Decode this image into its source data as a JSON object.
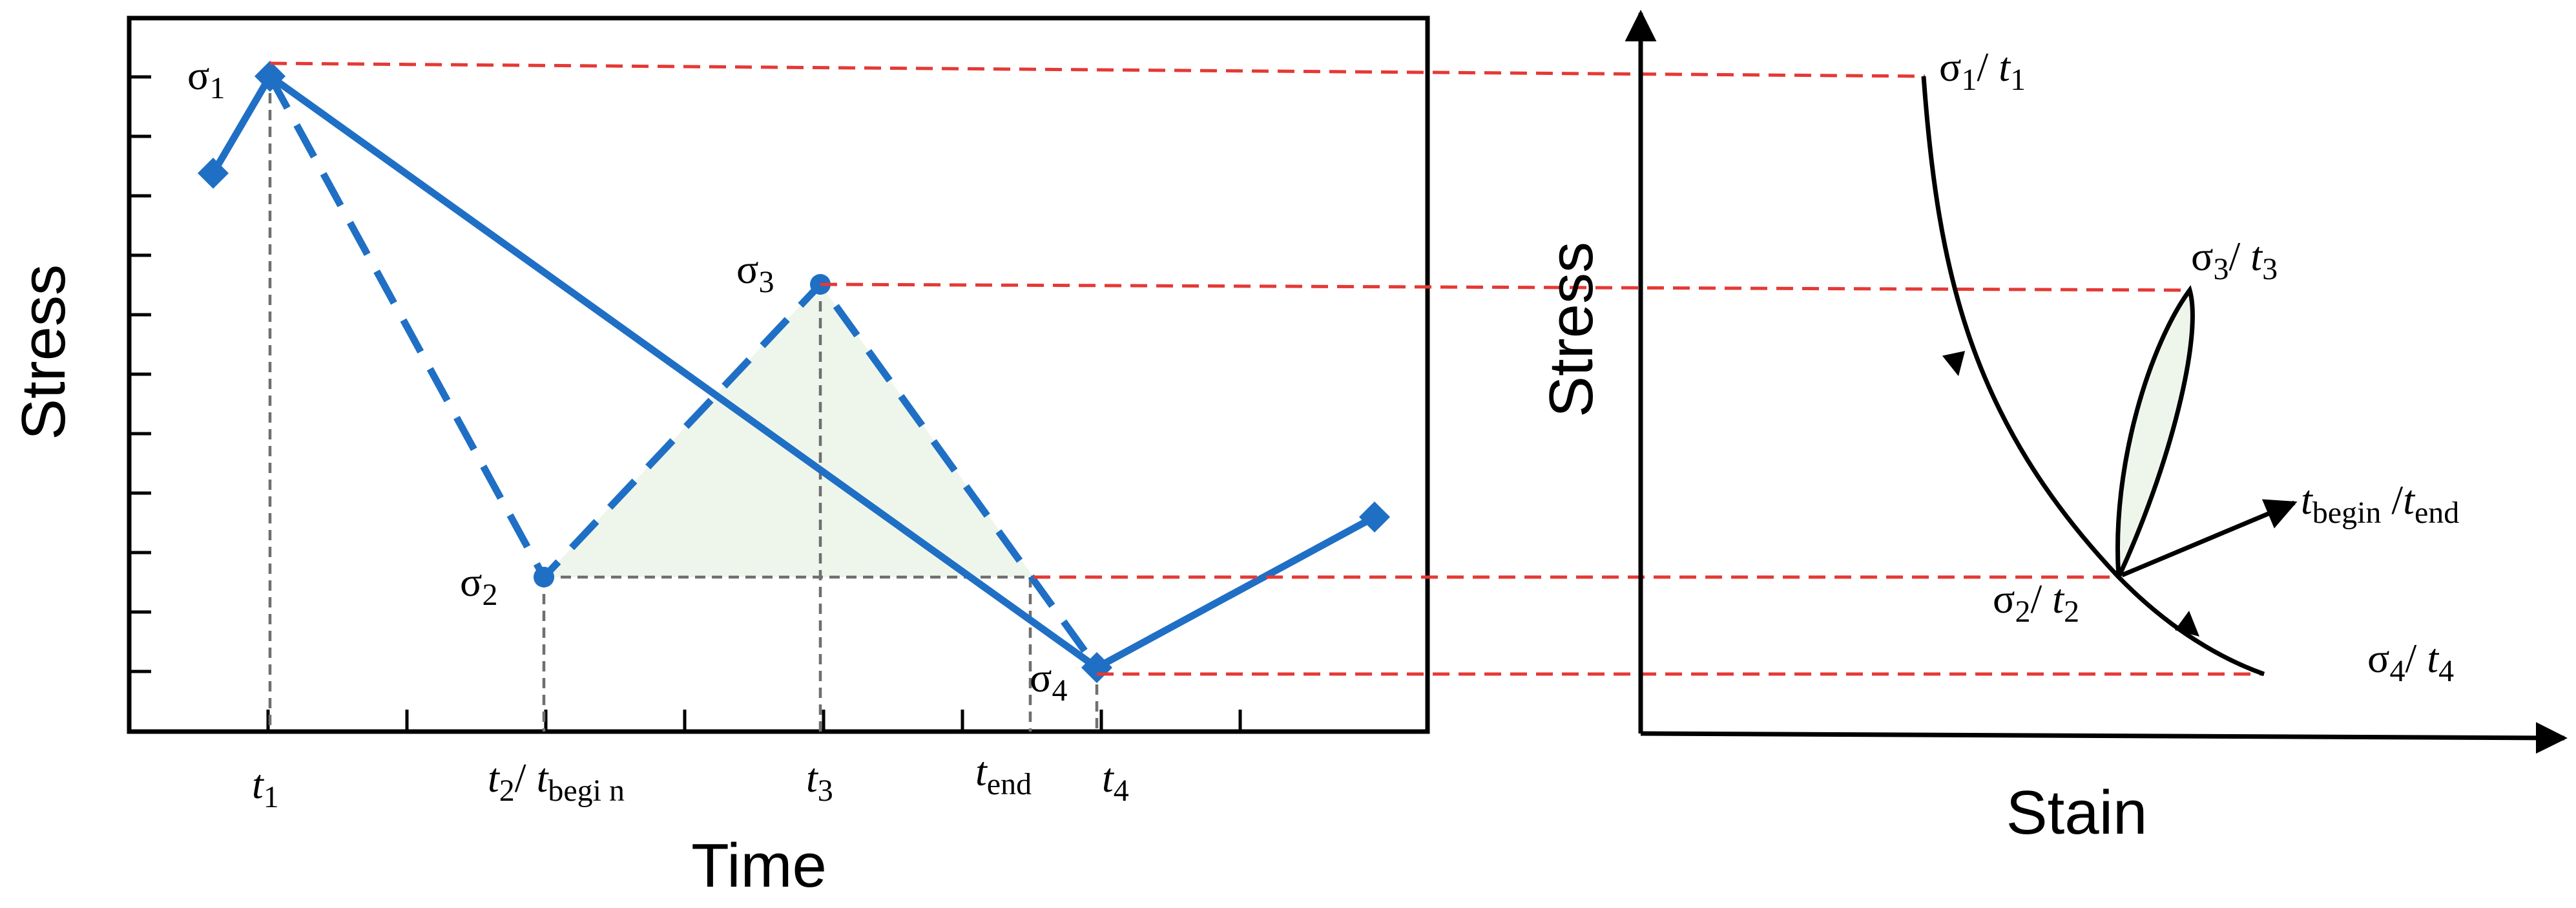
{
  "left_chart": {
    "ylabel": "Stress",
    "xlabel": "Time",
    "point_labels": {
      "s1": {
        "base": "σ",
        "sub": "1"
      },
      "s2": {
        "base": "σ",
        "sub": "2"
      },
      "s3": {
        "base": "σ",
        "sub": "3"
      },
      "s4": {
        "base": "σ",
        "sub": "4"
      }
    },
    "tick_labels": {
      "t1": {
        "base": "t",
        "sub": "1"
      },
      "t2": {
        "base": "t",
        "sub": "2",
        "sep": "/ ",
        "base2": "t",
        "sub2": "begi n"
      },
      "t3": {
        "base": "t",
        "sub": "3"
      },
      "tend": {
        "base": "t",
        "sub": "end"
      },
      "t4": {
        "base": "t",
        "sub": "4"
      }
    }
  },
  "right_chart": {
    "ylabel": "Stress",
    "xlabel": "Stain",
    "point_labels": {
      "p1": {
        "base": "σ",
        "sub": "1",
        "sep": "/ ",
        "base2": "t",
        "sub2": "1"
      },
      "p3": {
        "base": "σ",
        "sub": "3",
        "sep": "/ ",
        "base2": "t",
        "sub2": "3"
      },
      "pbe": {
        "base": "t",
        "sub": "begin",
        "sep": " /",
        "base2": "t",
        "sub2": "end"
      },
      "p2": {
        "base": "σ",
        "sub": "2",
        "sep": "/ ",
        "base2": "t",
        "sub2": "2"
      },
      "p4": {
        "base": "σ",
        "sub": "4",
        "sep": "/ ",
        "base2": "t",
        "sub2": "4"
      }
    }
  },
  "colors": {
    "series": "#1f6fc5",
    "guide_red": "#e53935",
    "guide_grey": "#6f6f6f",
    "loop_fill": "#eef6ec"
  }
}
